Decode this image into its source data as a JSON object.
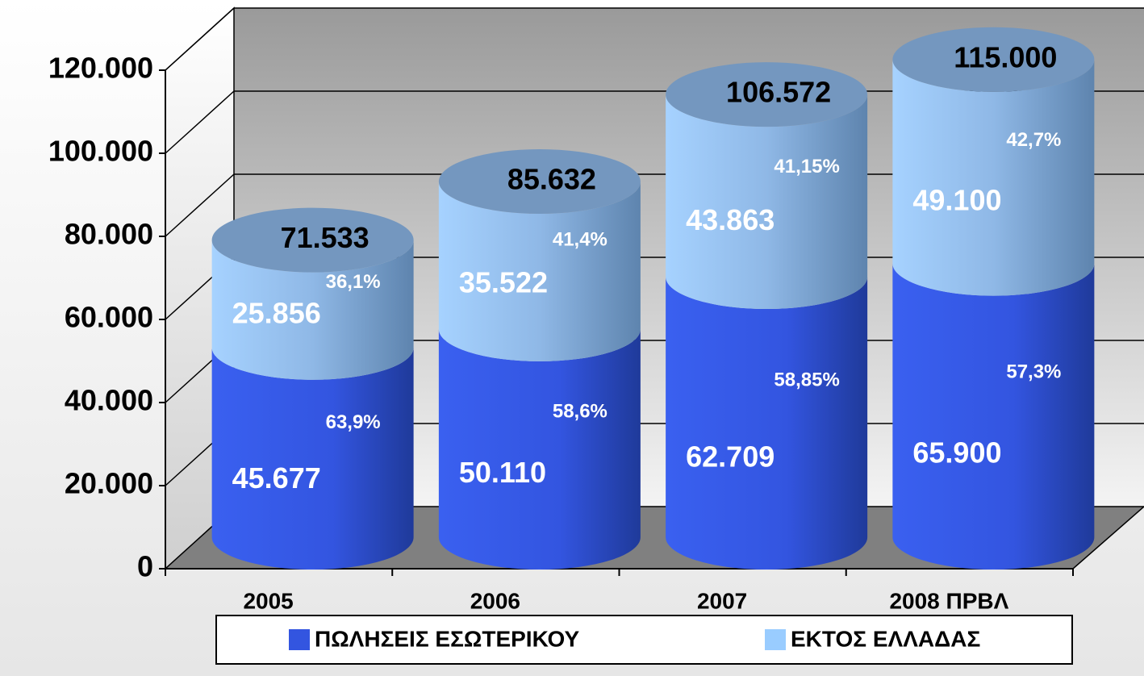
{
  "chart_data": {
    "type": "cylinder",
    "categories": [
      "2005",
      "2006",
      "2007",
      "2008 ΠΡΒΛ"
    ],
    "series": [
      {
        "name": "ΠΩΛΗΣΕΙΣ ΕΣΩΤΕΡΙΚΟΥ",
        "color": "#3355e0",
        "values": [
          45677,
          50110,
          62709,
          65900
        ],
        "value_labels": [
          "45.677",
          "50.110",
          "62.709",
          "65.900"
        ],
        "percents": [
          63.9,
          58.6,
          58.85,
          57.3
        ],
        "percent_labels": [
          "63,9%",
          "58,6%",
          "58,85%",
          "57,3%"
        ]
      },
      {
        "name": "ΕΚΤΟΣ ΕΛΛΑΔΑΣ",
        "color": "#99ccff",
        "values": [
          25856,
          35522,
          43863,
          49100
        ],
        "value_labels": [
          "25.856",
          "35.522",
          "43.863",
          "49.100"
        ],
        "percents": [
          36.1,
          41.4,
          41.15,
          42.7
        ],
        "percent_labels": [
          "36,1%",
          "41,4%",
          "41,15%",
          "42,7%"
        ]
      }
    ],
    "totals": {
      "values": [
        71533,
        85632,
        106572,
        115000
      ],
      "value_labels": [
        "71.533",
        "85.632",
        "106.572",
        "115.000"
      ]
    },
    "ylim": [
      0,
      120000
    ],
    "yticks": [
      0,
      {
        "value": 20000,
        "label": "20.000"
      },
      {
        "value": 40000,
        "label": "40.000"
      },
      {
        "value": 60000,
        "label": "60.000"
      },
      {
        "value": 80000,
        "label": "80.000"
      },
      {
        "value": 100000,
        "label": "100.000"
      },
      {
        "value": 120000,
        "label": "120.000"
      }
    ],
    "grid": true,
    "legend": "bottom"
  }
}
